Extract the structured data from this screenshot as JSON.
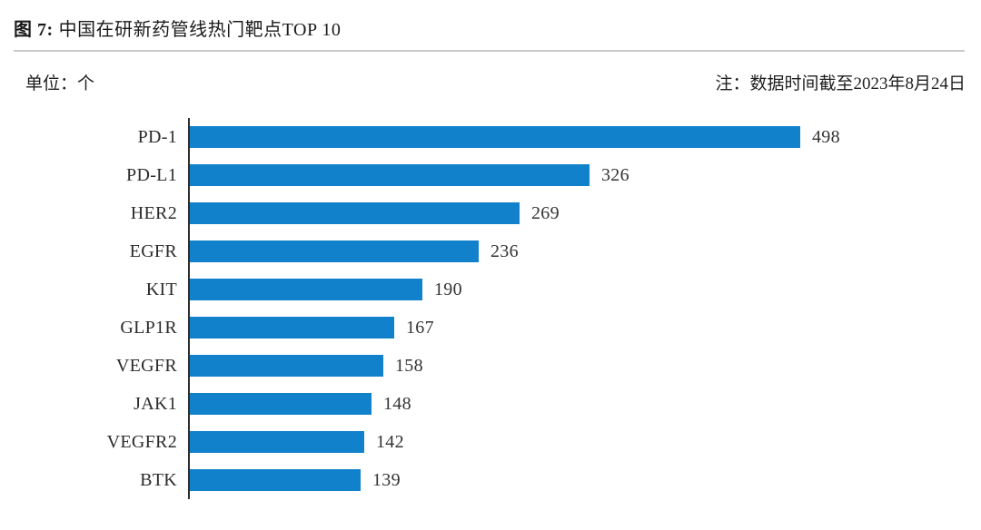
{
  "header": {
    "figure_label": "图 7:",
    "title": "中国在研新药管线热门靶点TOP 10"
  },
  "meta": {
    "unit_label": "单位：个",
    "note": "注：数据时间截至2023年8月24日"
  },
  "chart_data": {
    "type": "bar",
    "orientation": "horizontal",
    "title": "中国在研新药管线热门靶点TOP 10",
    "categories": [
      "PD-1",
      "PD-L1",
      "HER2",
      "EGFR",
      "KIT",
      "GLP1R",
      "VEGFR",
      "JAK1",
      "VEGFR2",
      "BTK"
    ],
    "values": [
      498,
      326,
      269,
      236,
      190,
      167,
      158,
      148,
      142,
      139
    ],
    "unit": "个",
    "xlabel": "",
    "ylabel": "",
    "xlim": [
      0,
      498
    ],
    "grid": false,
    "legend": false,
    "value_labels": true,
    "bar_color": "#1181CB",
    "axis_line_color": "#2e2e2e"
  }
}
